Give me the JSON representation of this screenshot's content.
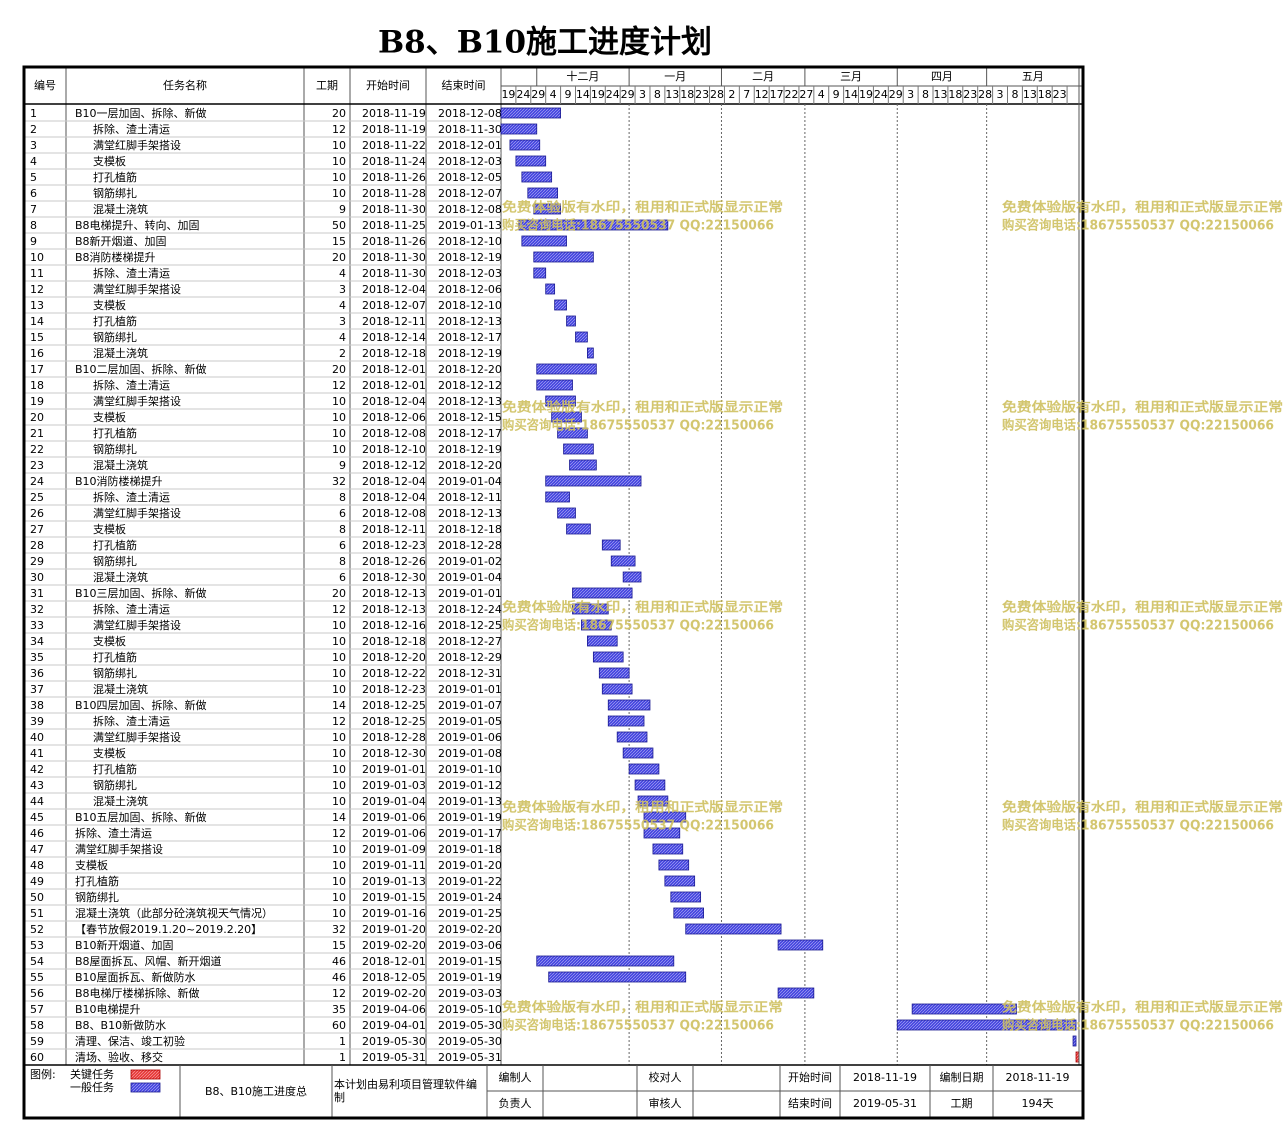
{
  "title": "B8、B10施工进度计划",
  "header": {
    "no": "编号",
    "name": "任务名称",
    "days": "工期",
    "start": "开始时间",
    "end": "结束时间"
  },
  "timeline": {
    "months": [
      "十二月",
      "一月",
      "二月",
      "三月",
      "四月",
      "五月"
    ],
    "days": [
      19,
      24,
      29,
      4,
      9,
      14,
      19,
      24,
      29,
      3,
      8,
      13,
      18,
      23,
      28,
      2,
      7,
      12,
      17,
      22,
      27,
      4,
      9,
      14,
      19,
      24,
      29,
      3,
      8,
      13,
      18,
      23,
      28,
      3,
      8,
      13,
      18,
      23
    ],
    "bar_color": "#4646e0",
    "critical_color": "#e83a3a"
  },
  "tasks": {
    "rows": [
      {
        "no": 1,
        "name": "B10一层加固、拆除、新做",
        "level": 1,
        "days": 20,
        "start": "2018-11-19",
        "end": "2018-12-08"
      },
      {
        "no": 2,
        "name": "拆除、渣土清运",
        "level": 2,
        "days": 12,
        "start": "2018-11-19",
        "end": "2018-11-30"
      },
      {
        "no": 3,
        "name": "满堂红脚手架搭设",
        "level": 2,
        "days": 10,
        "start": "2018-11-22",
        "end": "2018-12-01"
      },
      {
        "no": 4,
        "name": "支模板",
        "level": 2,
        "days": 10,
        "start": "2018-11-24",
        "end": "2018-12-03"
      },
      {
        "no": 5,
        "name": "打孔植筋",
        "level": 2,
        "days": 10,
        "start": "2018-11-26",
        "end": "2018-12-05"
      },
      {
        "no": 6,
        "name": "钢筋绑扎",
        "level": 2,
        "days": 10,
        "start": "2018-11-28",
        "end": "2018-12-07"
      },
      {
        "no": 7,
        "name": "混凝土浇筑",
        "level": 2,
        "days": 9,
        "start": "2018-11-30",
        "end": "2018-12-08"
      },
      {
        "no": 8,
        "name": "B8电梯提升、转向、加固",
        "level": 1,
        "days": 50,
        "start": "2018-11-25",
        "end": "2019-01-13"
      },
      {
        "no": 9,
        "name": "B8新开烟道、加固",
        "level": 1,
        "days": 15,
        "start": "2018-11-26",
        "end": "2018-12-10"
      },
      {
        "no": 10,
        "name": "B8消防楼梯提升",
        "level": 1,
        "days": 20,
        "start": "2018-11-30",
        "end": "2018-12-19"
      },
      {
        "no": 11,
        "name": "拆除、渣土清运",
        "level": 2,
        "days": 4,
        "start": "2018-11-30",
        "end": "2018-12-03"
      },
      {
        "no": 12,
        "name": "满堂红脚手架搭设",
        "level": 2,
        "days": 3,
        "start": "2018-12-04",
        "end": "2018-12-06"
      },
      {
        "no": 13,
        "name": "支模板",
        "level": 2,
        "days": 4,
        "start": "2018-12-07",
        "end": "2018-12-10"
      },
      {
        "no": 14,
        "name": "打孔植筋",
        "level": 2,
        "days": 3,
        "start": "2018-12-11",
        "end": "2018-12-13"
      },
      {
        "no": 15,
        "name": "钢筋绑扎",
        "level": 2,
        "days": 4,
        "start": "2018-12-14",
        "end": "2018-12-17"
      },
      {
        "no": 16,
        "name": "混凝土浇筑",
        "level": 2,
        "days": 2,
        "start": "2018-12-18",
        "end": "2018-12-19"
      },
      {
        "no": 17,
        "name": "B10二层加固、拆除、新做",
        "level": 1,
        "days": 20,
        "start": "2018-12-01",
        "end": "2018-12-20"
      },
      {
        "no": 18,
        "name": "拆除、渣土清运",
        "level": 2,
        "days": 12,
        "start": "2018-12-01",
        "end": "2018-12-12"
      },
      {
        "no": 19,
        "name": "满堂红脚手架搭设",
        "level": 2,
        "days": 10,
        "start": "2018-12-04",
        "end": "2018-12-13"
      },
      {
        "no": 20,
        "name": "支模板",
        "level": 2,
        "days": 10,
        "start": "2018-12-06",
        "end": "2018-12-15"
      },
      {
        "no": 21,
        "name": "打孔植筋",
        "level": 2,
        "days": 10,
        "start": "2018-12-08",
        "end": "2018-12-17"
      },
      {
        "no": 22,
        "name": "钢筋绑扎",
        "level": 2,
        "days": 10,
        "start": "2018-12-10",
        "end": "2018-12-19"
      },
      {
        "no": 23,
        "name": "混凝土浇筑",
        "level": 2,
        "days": 9,
        "start": "2018-12-12",
        "end": "2018-12-20"
      },
      {
        "no": 24,
        "name": "B10消防楼梯提升",
        "level": 1,
        "days": 32,
        "start": "2018-12-04",
        "end": "2019-01-04"
      },
      {
        "no": 25,
        "name": "拆除、渣土清运",
        "level": 2,
        "days": 8,
        "start": "2018-12-04",
        "end": "2018-12-11"
      },
      {
        "no": 26,
        "name": "满堂红脚手架搭设",
        "level": 2,
        "days": 6,
        "start": "2018-12-08",
        "end": "2018-12-13"
      },
      {
        "no": 27,
        "name": "支模板",
        "level": 2,
        "days": 8,
        "start": "2018-12-11",
        "end": "2018-12-18"
      },
      {
        "no": 28,
        "name": "打孔植筋",
        "level": 2,
        "days": 6,
        "start": "2018-12-23",
        "end": "2018-12-28"
      },
      {
        "no": 29,
        "name": "钢筋绑扎",
        "level": 2,
        "days": 8,
        "start": "2018-12-26",
        "end": "2019-01-02"
      },
      {
        "no": 30,
        "name": "混凝土浇筑",
        "level": 2,
        "days": 6,
        "start": "2018-12-30",
        "end": "2019-01-04"
      },
      {
        "no": 31,
        "name": "B10三层加固、拆除、新做",
        "level": 1,
        "days": 20,
        "start": "2018-12-13",
        "end": "2019-01-01"
      },
      {
        "no": 32,
        "name": "拆除、渣土清运",
        "level": 2,
        "days": 12,
        "start": "2018-12-13",
        "end": "2018-12-24"
      },
      {
        "no": 33,
        "name": "满堂红脚手架搭设",
        "level": 2,
        "days": 10,
        "start": "2018-12-16",
        "end": "2018-12-25"
      },
      {
        "no": 34,
        "name": "支模板",
        "level": 2,
        "days": 10,
        "start": "2018-12-18",
        "end": "2018-12-27"
      },
      {
        "no": 35,
        "name": "打孔植筋",
        "level": 2,
        "days": 10,
        "start": "2018-12-20",
        "end": "2018-12-29"
      },
      {
        "no": 36,
        "name": "钢筋绑扎",
        "level": 2,
        "days": 10,
        "start": "2018-12-22",
        "end": "2018-12-31"
      },
      {
        "no": 37,
        "name": "混凝土浇筑",
        "level": 2,
        "days": 10,
        "start": "2018-12-23",
        "end": "2019-01-01"
      },
      {
        "no": 38,
        "name": "B10四层加固、拆除、新做",
        "level": 1,
        "days": 14,
        "start": "2018-12-25",
        "end": "2019-01-07"
      },
      {
        "no": 39,
        "name": "拆除、渣土清运",
        "level": 2,
        "days": 12,
        "start": "2018-12-25",
        "end": "2019-01-05"
      },
      {
        "no": 40,
        "name": "满堂红脚手架搭设",
        "level": 2,
        "days": 10,
        "start": "2018-12-28",
        "end": "2019-01-06"
      },
      {
        "no": 41,
        "name": "支模板",
        "level": 2,
        "days": 10,
        "start": "2018-12-30",
        "end": "2019-01-08"
      },
      {
        "no": 42,
        "name": "打孔植筋",
        "level": 2,
        "days": 10,
        "start": "2019-01-01",
        "end": "2019-01-10"
      },
      {
        "no": 43,
        "name": "钢筋绑扎",
        "level": 2,
        "days": 10,
        "start": "2019-01-03",
        "end": "2019-01-12"
      },
      {
        "no": 44,
        "name": "混凝土浇筑",
        "level": 2,
        "days": 10,
        "start": "2019-01-04",
        "end": "2019-01-13"
      },
      {
        "no": 45,
        "name": "B10五层加固、拆除、新做",
        "level": 1,
        "days": 14,
        "start": "2019-01-06",
        "end": "2019-01-19"
      },
      {
        "no": 46,
        "name": "拆除、渣土清运",
        "level": 1,
        "days": 12,
        "start": "2019-01-06",
        "end": "2019-01-17"
      },
      {
        "no": 47,
        "name": "满堂红脚手架搭设",
        "level": 1,
        "days": 10,
        "start": "2019-01-09",
        "end": "2019-01-18"
      },
      {
        "no": 48,
        "name": "支模板",
        "level": 1,
        "days": 10,
        "start": "2019-01-11",
        "end": "2019-01-20"
      },
      {
        "no": 49,
        "name": "打孔植筋",
        "level": 1,
        "days": 10,
        "start": "2019-01-13",
        "end": "2019-01-22"
      },
      {
        "no": 50,
        "name": "钢筋绑扎",
        "level": 1,
        "days": 10,
        "start": "2019-01-15",
        "end": "2019-01-24"
      },
      {
        "no": 51,
        "name": "混凝土浇筑（此部分砼浇筑视天气情况）",
        "level": 1,
        "days": 10,
        "start": "2019-01-16",
        "end": "2019-01-25"
      },
      {
        "no": 52,
        "name": "【春节放假2019.1.20~2019.2.20】",
        "level": 1,
        "days": 32,
        "start": "2019-01-20",
        "end": "2019-02-20"
      },
      {
        "no": 53,
        "name": "B10新开烟道、加固",
        "level": 1,
        "days": 15,
        "start": "2019-02-20",
        "end": "2019-03-06"
      },
      {
        "no": 54,
        "name": "B8屋面拆瓦、风帽、新开烟道",
        "level": 1,
        "days": 46,
        "start": "2018-12-01",
        "end": "2019-01-15"
      },
      {
        "no": 55,
        "name": "B10屋面拆瓦、新做防水",
        "level": 1,
        "days": 46,
        "start": "2018-12-05",
        "end": "2019-01-19"
      },
      {
        "no": 56,
        "name": "B8电梯厅楼梯拆除、新做",
        "level": 1,
        "days": 12,
        "start": "2019-02-20",
        "end": "2019-03-03"
      },
      {
        "no": 57,
        "name": "B10电梯提升",
        "level": 1,
        "days": 35,
        "start": "2019-04-06",
        "end": "2019-05-10"
      },
      {
        "no": 58,
        "name": "B8、B10新做防水",
        "level": 1,
        "days": 60,
        "start": "2019-04-01",
        "end": "2019-05-30"
      },
      {
        "no": 59,
        "name": "清理、保洁、竣工初验",
        "level": 1,
        "days": 1,
        "start": "2019-05-30",
        "end": "2019-05-30"
      },
      {
        "no": 60,
        "name": "清场、验收、移交",
        "level": 1,
        "days": 1,
        "start": "2019-05-31",
        "end": "2019-05-31",
        "critical": true
      }
    ]
  },
  "footer": {
    "legend_title": "图例:",
    "critical": "关键任务",
    "normal": "一般任务",
    "plan_name": "B8、B10施工进度总",
    "software": "本计划由易利项目管理软件编制",
    "compiler": "编制人",
    "checker": "校对人",
    "start_label": "开始时间",
    "start": "2018-11-19",
    "compile_date_label": "编制日期",
    "compile_date": "2018-11-19",
    "manager": "负责人",
    "reviewer": "审核人",
    "end_label": "结束时间",
    "end": "2019-05-31",
    "duration_label": "工期",
    "duration": "194天"
  },
  "watermark": {
    "line1": "免费体验版有水印，租用和正式版显示正常",
    "line2": "购买咨询电话:18675550537 QQ:22150066"
  }
}
